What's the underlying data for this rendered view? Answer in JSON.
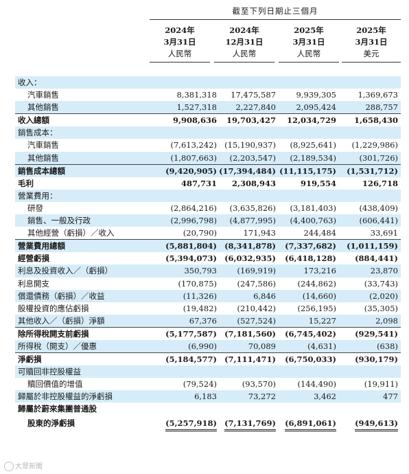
{
  "header": {
    "period": "截至下列日期止三個月",
    "columns": [
      {
        "year": "2024年",
        "date": "3月31日",
        "currency": "人民幣"
      },
      {
        "year": "2024年",
        "date": "12月31日",
        "currency": "人民幣"
      },
      {
        "year": "2025年",
        "date": "3月31日",
        "currency": "人民幣"
      },
      {
        "year": "2025年",
        "date": "3月31日",
        "currency": "美元"
      }
    ]
  },
  "rows": [
    {
      "label": "收入：",
      "values": [
        "",
        "",
        "",
        ""
      ]
    },
    {
      "label": "汽車銷售",
      "values": [
        "8,381,318",
        "17,475,587",
        "9,939,305",
        "1,369,673"
      ]
    },
    {
      "label": "其他銷售",
      "values": [
        "1,527,318",
        "2,227,840",
        "2,095,424",
        "288,757"
      ]
    },
    {
      "label": "收入總額",
      "values": [
        "9,908,636",
        "19,703,427",
        "12,034,729",
        "1,658,430"
      ]
    },
    {
      "label": "銷售成本：",
      "values": [
        "",
        "",
        "",
        ""
      ]
    },
    {
      "label": "汽車銷售",
      "values": [
        "(7,613,242)",
        "(15,190,937)",
        "(8,925,641)",
        "(1,229,986)"
      ]
    },
    {
      "label": "其他銷售",
      "values": [
        "(1,807,663)",
        "(2,203,547)",
        "(2,189,534)",
        "(301,726)"
      ]
    },
    {
      "label": "銷售成本總額",
      "values": [
        "(9,420,905)",
        "(17,394,484)",
        "(11,115,175)",
        "(1,531,712)"
      ]
    },
    {
      "label": "毛利",
      "values": [
        "487,731",
        "2,308,943",
        "919,554",
        "126,718"
      ]
    },
    {
      "label": "營業費用：",
      "values": [
        "",
        "",
        "",
        ""
      ]
    },
    {
      "label": "研發",
      "values": [
        "(2,864,216)",
        "(3,635,826)",
        "(3,181,403)",
        "(438,409)"
      ]
    },
    {
      "label": "銷售、一般及行政",
      "values": [
        "(2,996,798)",
        "(4,877,995)",
        "(4,400,763)",
        "(606,441)"
      ]
    },
    {
      "label": "其他經營（虧損）／收入",
      "values": [
        "(20,790)",
        "171,943",
        "244,484",
        "33,691"
      ]
    },
    {
      "label": "營業費用總額",
      "values": [
        "(5,881,804)",
        "(8,341,878)",
        "(7,337,682)",
        "(1,011,159)"
      ]
    },
    {
      "label": "經營虧損",
      "values": [
        "(5,394,073)",
        "(6,032,935)",
        "(6,418,128)",
        "(884,441)"
      ]
    },
    {
      "label": "利息及投資收入／（虧損）",
      "values": [
        "350,793",
        "(169,919)",
        "173,216",
        "23,870"
      ]
    },
    {
      "label": "利息開支",
      "values": [
        "(170,875)",
        "(247,586)",
        "(244,862)",
        "(33,743)"
      ]
    },
    {
      "label": "償還債務（虧損）／收益",
      "values": [
        "(11,326)",
        "6,846",
        "(14,660)",
        "(2,020)"
      ]
    },
    {
      "label": "股權投資的應佔虧損",
      "values": [
        "(19,482)",
        "(210,442)",
        "(256,195)",
        "(35,305)"
      ]
    },
    {
      "label": "其他收入／（虧損）淨額",
      "values": [
        "67,376",
        "(527,524)",
        "15,227",
        "2,098"
      ]
    },
    {
      "label": "除所得稅開支前虧損",
      "values": [
        "(5,177,587)",
        "(7,181,560)",
        "(6,745,402)",
        "(929,541)"
      ]
    },
    {
      "label": "所得稅（開支）／優惠",
      "values": [
        "(6,990)",
        "70,089",
        "(4,631)",
        "(638)"
      ]
    },
    {
      "label": "淨虧損",
      "values": [
        "(5,184,577)",
        "(7,111,471)",
        "(6,750,033)",
        "(930,179)"
      ]
    },
    {
      "label": "可贖回非控股權益",
      "values": [
        "",
        "",
        "",
        ""
      ]
    },
    {
      "label": "贖回價值的增值",
      "values": [
        "(79,524)",
        "(93,570)",
        "(144,490)",
        "(19,911)"
      ]
    },
    {
      "label": "歸屬於非控股權益的淨虧損",
      "values": [
        "6,183",
        "73,272",
        "3,462",
        "477"
      ]
    },
    {
      "label": "歸屬於蔚來集團普通股",
      "values": [
        "",
        "",
        "",
        ""
      ]
    },
    {
      "label": "股東的淨虧損",
      "values": [
        "(5,257,918)",
        "(7,131,769)",
        "(6,891,061)",
        "(949,613)"
      ]
    }
  ],
  "watermark": "大眾新聞"
}
